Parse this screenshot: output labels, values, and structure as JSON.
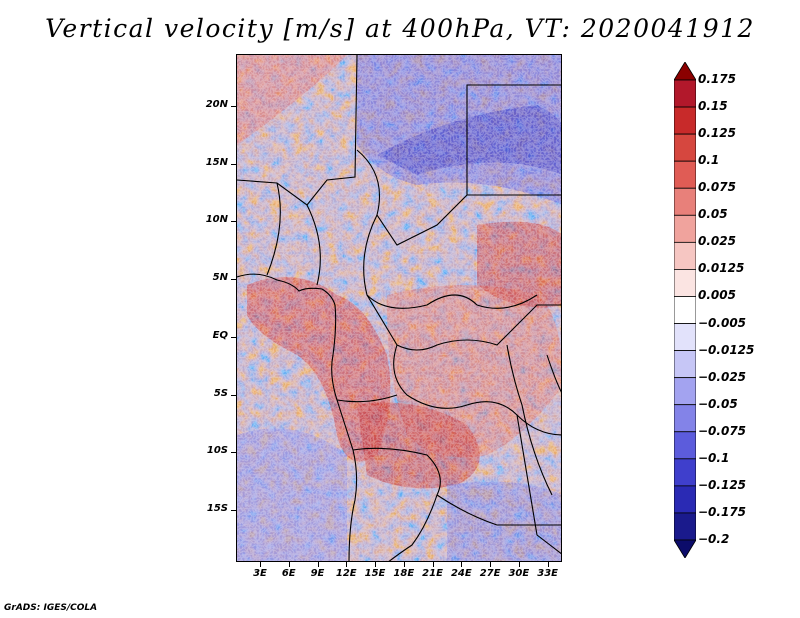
{
  "title": "Vertical velocity [m/s] at 400hPa, VT: 2020041912",
  "credit": "GrADS: IGES/COLA",
  "map": {
    "lat_range": [
      -19.5,
      24.5
    ],
    "lon_range": [
      0.5,
      34.5
    ],
    "lat_labels": [
      {
        "text": "20N",
        "value": 20
      },
      {
        "text": "15N",
        "value": 15
      },
      {
        "text": "10N",
        "value": 10
      },
      {
        "text": "5N",
        "value": 5
      },
      {
        "text": "EQ",
        "value": 0
      },
      {
        "text": "5S",
        "value": -5
      },
      {
        "text": "10S",
        "value": -10
      },
      {
        "text": "15S",
        "value": -15
      }
    ],
    "lon_labels": [
      {
        "text": "3E",
        "value": 3
      },
      {
        "text": "6E",
        "value": 6
      },
      {
        "text": "9E",
        "value": 9
      },
      {
        "text": "12E",
        "value": 12
      },
      {
        "text": "15E",
        "value": 15
      },
      {
        "text": "18E",
        "value": 18
      },
      {
        "text": "21E",
        "value": 21
      },
      {
        "text": "24E",
        "value": 24
      },
      {
        "text": "27E",
        "value": 27
      },
      {
        "text": "30E",
        "value": 30
      },
      {
        "text": "33E",
        "value": 33
      }
    ]
  },
  "colorbar": {
    "labels": [
      "0.175",
      "0.15",
      "0.125",
      "0.1",
      "0.075",
      "0.05",
      "0.025",
      "0.0125",
      "0.005",
      "−0.005",
      "−0.0125",
      "−0.025",
      "−0.05",
      "−0.075",
      "−0.1",
      "−0.125",
      "−0.175",
      "−0.2"
    ],
    "colors": [
      "#8b0000",
      "#b2182b",
      "#c82a2a",
      "#d6473f",
      "#e05c55",
      "#e8807a",
      "#f0a39d",
      "#f6c6c2",
      "#fbe4e2",
      "#ffffff",
      "#e2e2fb",
      "#c6c6f6",
      "#a3a3f0",
      "#8383e8",
      "#5c5cdc",
      "#3f3fcc",
      "#2a2ab4",
      "#1a1a8c",
      "#0c0c6a"
    ]
  },
  "colors": {
    "red": "#d6473f",
    "blue": "#5c5cdc",
    "border": "#000000"
  }
}
